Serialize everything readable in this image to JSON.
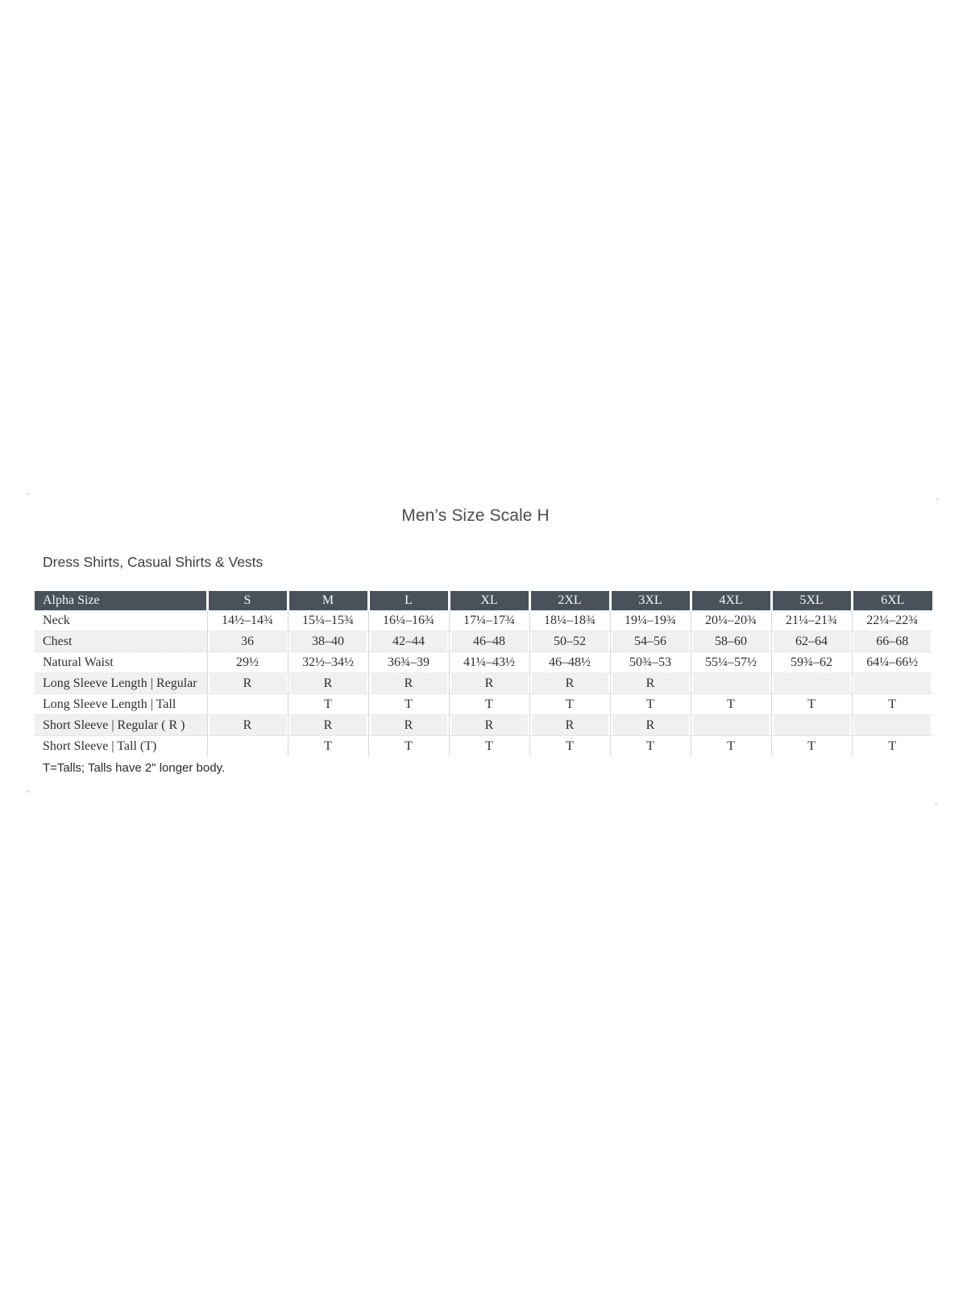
{
  "page": {
    "title": "Men’s Size Scale H",
    "section_title": "Dress Shirts, Casual Shirts & Vests",
    "footnote": "T=Talls; Talls have 2\" longer body."
  },
  "colors": {
    "header_bg": "#49525b",
    "header_text": "#f6f6f5",
    "stripe_bg": "#f0f0ee",
    "grid_line": "#d8d8d6",
    "body_text": "#2f2f2f"
  },
  "size_table": {
    "header": [
      "Alpha Size",
      "S",
      "M",
      "L",
      "XL",
      "2XL",
      "3XL",
      "4XL",
      "5XL",
      "6XL"
    ],
    "rows": [
      {
        "label": "Neck",
        "values": [
          "14½–14¾",
          "15¼–15¾",
          "16¼–16¾",
          "17¼–17¾",
          "18¼–18¾",
          "19¼–19¾",
          "20¼–20¾",
          "21¼–21¾",
          "22¼–22¾"
        ]
      },
      {
        "label": "Chest",
        "values": [
          "36",
          "38–40",
          "42–44",
          "46–48",
          "50–52",
          "54–56",
          "58–60",
          "62–64",
          "66–68"
        ]
      },
      {
        "label": "Natural Waist",
        "values": [
          "29½",
          "32½–34½",
          "36¾–39",
          "41¼–43½",
          "46–48½",
          "50¾–53",
          "55¼–57½",
          "59¾–62",
          "64¼–66½"
        ]
      },
      {
        "label": "Long Sleeve Length | Regular",
        "values": [
          "R",
          "R",
          "R",
          "R",
          "R",
          "R",
          "",
          "",
          ""
        ]
      },
      {
        "label": "Long Sleeve Length | Tall",
        "values": [
          "",
          "T",
          "T",
          "T",
          "T",
          "T",
          "T",
          "T",
          "T"
        ]
      },
      {
        "label": "Short Sleeve | Regular ( R )",
        "values": [
          "R",
          "R",
          "R",
          "R",
          "R",
          "R",
          "",
          "",
          ""
        ]
      },
      {
        "label": "Short Sleeve | Tall (T)",
        "values": [
          "",
          "T",
          "T",
          "T",
          "T",
          "T",
          "T",
          "T",
          "T"
        ]
      }
    ]
  }
}
